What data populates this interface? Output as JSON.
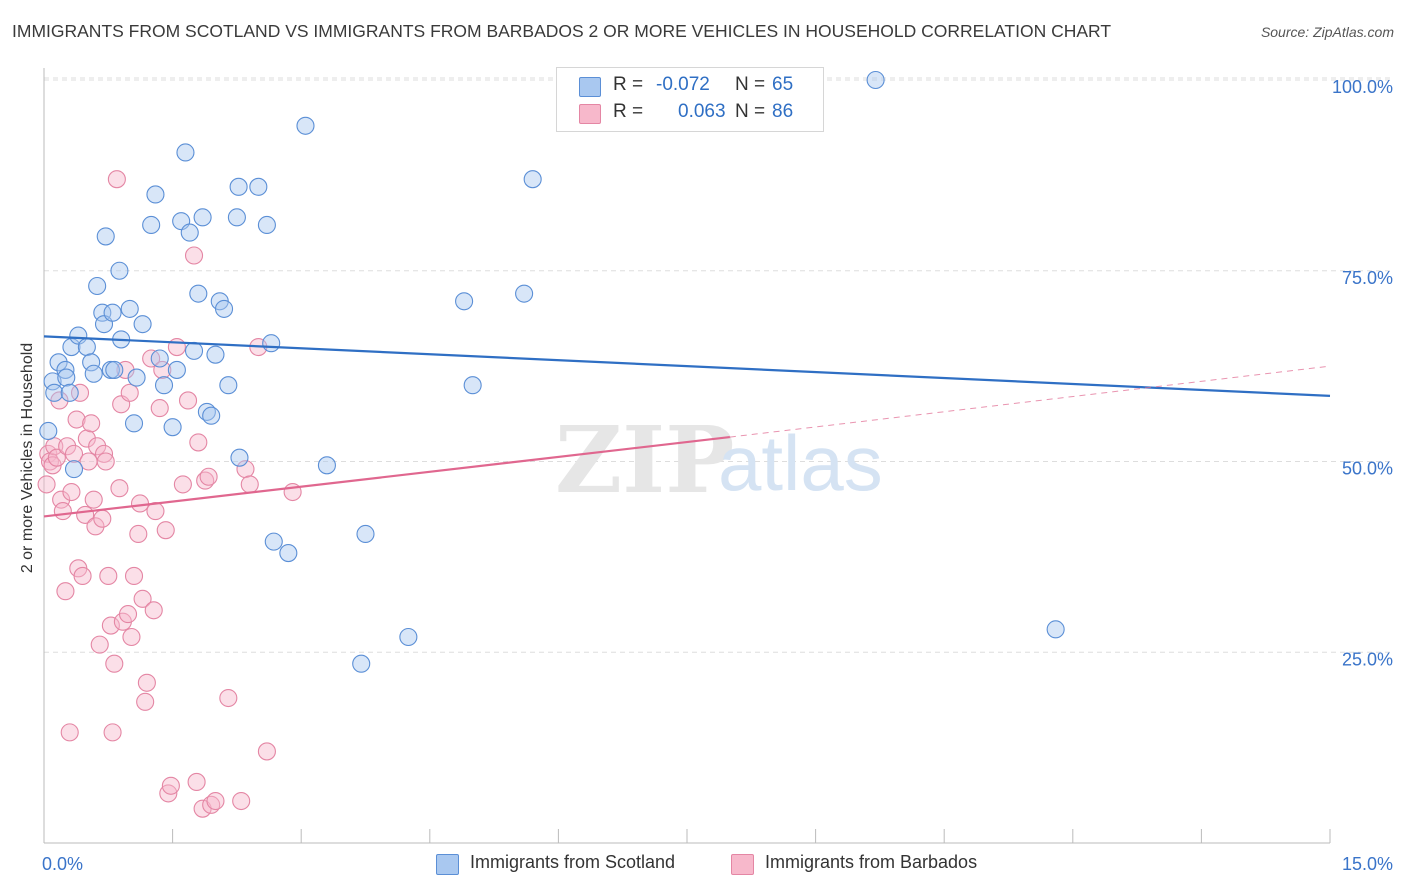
{
  "title": "IMMIGRANTS FROM SCOTLAND VS IMMIGRANTS FROM BARBADOS 2 OR MORE VEHICLES IN HOUSEHOLD CORRELATION CHART",
  "source": "Source: ZipAtlas.com",
  "watermark": {
    "zip": "ZIP",
    "atlas": "atlas"
  },
  "legend": {
    "r_label": "R =",
    "n_label": "N =",
    "scotland": {
      "r": "-0.072",
      "n": "65"
    },
    "barbados": {
      "r": "0.063",
      "n": "86"
    }
  },
  "colors": {
    "scotland_fill": "#a9c8f0",
    "scotland_stroke": "#5b8fd6",
    "scotland_line": "#2f6fc4",
    "barbados_fill": "#f7b8cb",
    "barbados_stroke": "#e486a4",
    "barbados_line": "#e0678f",
    "axis_label": "#3a74c9",
    "grid": "#dddddd"
  },
  "chart_data": {
    "type": "scatter",
    "title": "IMMIGRANTS FROM SCOTLAND VS IMMIGRANTS FROM BARBADOS 2 OR MORE VEHICLES IN HOUSEHOLD CORRELATION CHART",
    "xlabel": "",
    "ylabel": "2 or more Vehicles in Household",
    "xlim": [
      0,
      15
    ],
    "ylim": [
      0,
      100
    ],
    "x_tick_labels": {
      "min": "0.0%",
      "max": "15.0%"
    },
    "y_ticks": [
      {
        "value": 100,
        "label": "100.0%"
      },
      {
        "value": 75,
        "label": "75.0%"
      },
      {
        "value": 50,
        "label": "50.0%"
      },
      {
        "value": 25,
        "label": "25.0%"
      }
    ],
    "series": [
      {
        "name": "Immigrants from Scotland",
        "trend": {
          "x0": 0,
          "y0": 66.4,
          "x1": 15,
          "y1": 58.6
        },
        "points": [
          [
            0.05,
            54
          ],
          [
            0.1,
            60.5
          ],
          [
            0.12,
            59
          ],
          [
            0.17,
            63
          ],
          [
            0.25,
            62
          ],
          [
            0.26,
            61
          ],
          [
            0.3,
            59
          ],
          [
            0.32,
            65
          ],
          [
            0.35,
            49
          ],
          [
            0.4,
            66.5
          ],
          [
            0.5,
            65
          ],
          [
            0.55,
            63
          ],
          [
            0.58,
            61.5
          ],
          [
            0.62,
            73
          ],
          [
            0.68,
            69.5
          ],
          [
            0.7,
            68
          ],
          [
            0.72,
            79.5
          ],
          [
            0.78,
            62
          ],
          [
            0.8,
            69.5
          ],
          [
            0.82,
            62
          ],
          [
            0.88,
            75
          ],
          [
            0.9,
            66
          ],
          [
            1.0,
            70
          ],
          [
            1.05,
            55
          ],
          [
            1.08,
            61
          ],
          [
            1.15,
            68
          ],
          [
            1.3,
            85
          ],
          [
            1.25,
            81
          ],
          [
            1.35,
            63.5
          ],
          [
            1.4,
            60
          ],
          [
            1.5,
            54.5
          ],
          [
            1.55,
            62
          ],
          [
            1.6,
            81.5
          ],
          [
            1.65,
            90.5
          ],
          [
            1.7,
            80
          ],
          [
            1.75,
            64.5
          ],
          [
            1.8,
            72
          ],
          [
            1.85,
            82
          ],
          [
            1.9,
            56.5
          ],
          [
            1.95,
            56
          ],
          [
            2.0,
            64
          ],
          [
            2.05,
            71
          ],
          [
            2.1,
            70
          ],
          [
            2.15,
            60
          ],
          [
            2.25,
            82
          ],
          [
            2.27,
            86
          ],
          [
            2.28,
            50.5
          ],
          [
            2.5,
            86
          ],
          [
            2.6,
            81
          ],
          [
            2.65,
            65.5
          ],
          [
            2.68,
            39.5
          ],
          [
            2.85,
            38
          ],
          [
            3.05,
            94
          ],
          [
            3.3,
            49.5
          ],
          [
            3.7,
            23.5
          ],
          [
            3.75,
            40.5
          ],
          [
            4.25,
            27
          ],
          [
            4.9,
            71
          ],
          [
            5.0,
            60
          ],
          [
            5.6,
            72
          ],
          [
            5.7,
            87
          ],
          [
            9.7,
            100
          ],
          [
            11.8,
            28
          ]
        ]
      },
      {
        "name": "Immigrants from Barbados",
        "trend": {
          "x0": 0,
          "y0": 42.8,
          "x1": 8.0,
          "y1": 53.2,
          "dash_to": {
            "x": 15,
            "y": 62.5
          }
        },
        "points": [
          [
            0.03,
            47
          ],
          [
            0.05,
            51
          ],
          [
            0.07,
            50
          ],
          [
            0.1,
            49.5
          ],
          [
            0.12,
            52
          ],
          [
            0.15,
            50.5
          ],
          [
            0.18,
            58
          ],
          [
            0.2,
            45
          ],
          [
            0.22,
            43.5
          ],
          [
            0.25,
            33
          ],
          [
            0.27,
            52
          ],
          [
            0.3,
            14.5
          ],
          [
            0.32,
            46
          ],
          [
            0.35,
            51
          ],
          [
            0.38,
            55.5
          ],
          [
            0.4,
            36
          ],
          [
            0.42,
            59
          ],
          [
            0.45,
            35
          ],
          [
            0.48,
            43
          ],
          [
            0.5,
            53
          ],
          [
            0.52,
            50
          ],
          [
            0.55,
            55
          ],
          [
            0.58,
            45
          ],
          [
            0.6,
            41.5
          ],
          [
            0.62,
            52
          ],
          [
            0.65,
            26
          ],
          [
            0.68,
            42.5
          ],
          [
            0.7,
            51
          ],
          [
            0.72,
            50
          ],
          [
            0.75,
            35
          ],
          [
            0.78,
            28.5
          ],
          [
            0.8,
            14.5
          ],
          [
            0.82,
            23.5
          ],
          [
            0.85,
            87
          ],
          [
            0.88,
            46.5
          ],
          [
            0.9,
            57.5
          ],
          [
            0.92,
            29
          ],
          [
            0.95,
            62
          ],
          [
            0.98,
            30
          ],
          [
            1.0,
            59
          ],
          [
            1.02,
            27
          ],
          [
            1.05,
            35
          ],
          [
            1.1,
            40.5
          ],
          [
            1.12,
            44.5
          ],
          [
            1.15,
            32
          ],
          [
            1.18,
            18.5
          ],
          [
            1.2,
            21
          ],
          [
            1.25,
            63.5
          ],
          [
            1.28,
            30.5
          ],
          [
            1.3,
            43.5
          ],
          [
            1.35,
            57
          ],
          [
            1.38,
            62
          ],
          [
            1.42,
            41
          ],
          [
            1.45,
            6.5
          ],
          [
            1.48,
            7.5
          ],
          [
            1.55,
            65
          ],
          [
            1.62,
            47
          ],
          [
            1.68,
            58
          ],
          [
            1.75,
            77
          ],
          [
            1.78,
            8
          ],
          [
            1.8,
            52.5
          ],
          [
            1.85,
            4.5
          ],
          [
            1.88,
            47.5
          ],
          [
            1.92,
            48
          ],
          [
            1.95,
            5
          ],
          [
            2.0,
            5.5
          ],
          [
            2.15,
            19
          ],
          [
            2.3,
            5.5
          ],
          [
            2.35,
            49
          ],
          [
            2.4,
            47
          ],
          [
            2.5,
            65
          ],
          [
            2.6,
            12
          ],
          [
            2.9,
            46
          ]
        ]
      }
    ]
  },
  "bottom_legend": {
    "scotland": "Immigrants from Scotland",
    "barbados": "Immigrants from Barbados"
  }
}
